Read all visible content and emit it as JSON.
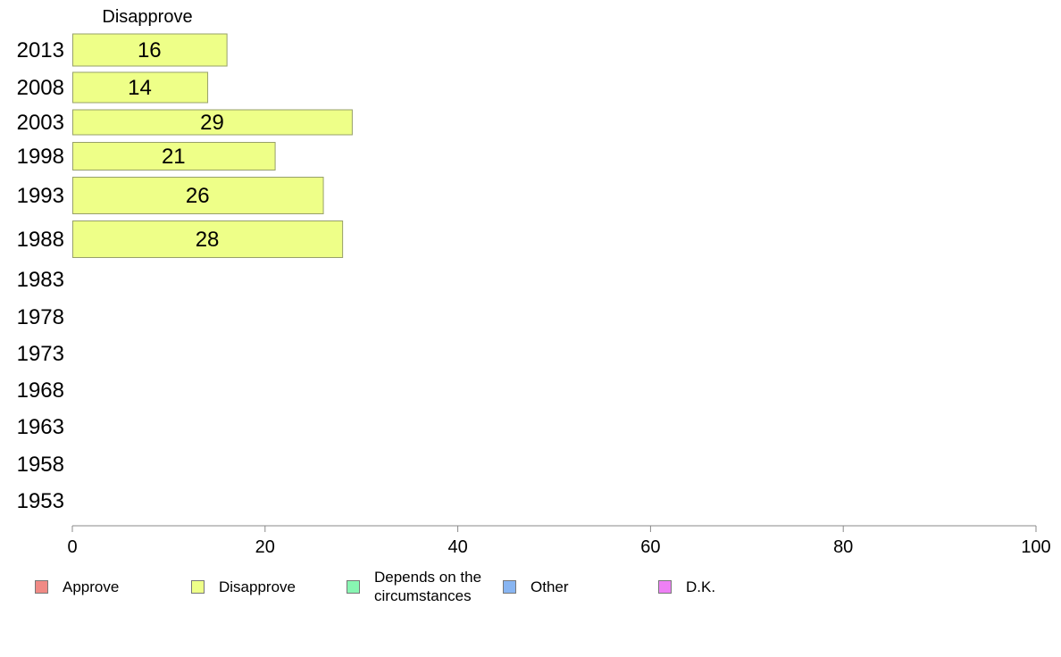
{
  "chart_data": {
    "type": "bar",
    "orientation": "horizontal",
    "title": "Disapprove",
    "categories": [
      "2013",
      "2008",
      "2003",
      "1998",
      "1993",
      "1988",
      "1983",
      "1978",
      "1973",
      "1968",
      "1963",
      "1958",
      "1953"
    ],
    "series": [
      {
        "name": "Disapprove",
        "color": "#eeff88",
        "values": [
          16,
          14,
          29,
          21,
          26,
          28,
          null,
          null,
          null,
          null,
          null,
          null,
          null
        ]
      }
    ],
    "xlim": [
      0,
      100
    ],
    "xticks": [
      0,
      20,
      40,
      60,
      80,
      100
    ],
    "xlabel": "",
    "ylabel": "",
    "grid": false,
    "legend_position": "bottom",
    "legend": [
      {
        "label": "Approve",
        "color": "#f08a85"
      },
      {
        "label": "Disapprove",
        "color": "#eeff88"
      },
      {
        "label": "Depends on the\ncircumstances",
        "color": "#88f5b2"
      },
      {
        "label": "Other",
        "color": "#88b5f2"
      },
      {
        "label": "D.K.",
        "color": "#ee80f5"
      }
    ]
  }
}
